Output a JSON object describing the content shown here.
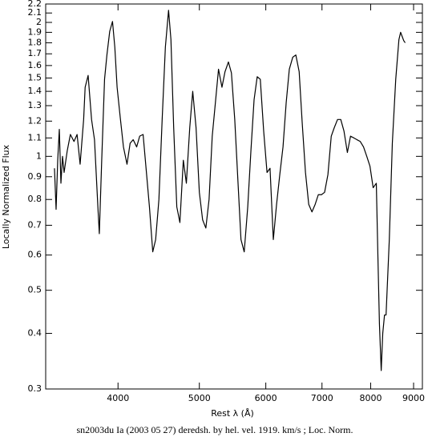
{
  "chart_data": {
    "type": "line",
    "x_label": "Rest λ (Å)",
    "y_label": "Locally Normalized Flux",
    "caption": "sn2003du Ia (2003 05 27) deredsh. by hel. vel.  1919. km/s ;  Loc. Norm.",
    "xlog": true,
    "ylog": true,
    "color": "#000000",
    "xlim": [
      3280,
      9220
    ],
    "ylim": [
      0.3,
      2.2
    ],
    "xticks": [
      4000,
      5000,
      6000,
      7000,
      8000,
      9000
    ],
    "yticks": [
      0.3,
      0.4,
      0.5,
      0.6,
      0.7,
      0.8,
      0.9,
      1,
      1.1,
      1.2,
      1.3,
      1.4,
      1.5,
      1.6,
      1.7,
      1.8,
      1.9,
      2,
      2.1,
      2.2
    ],
    "x": [
      3360,
      3375,
      3390,
      3405,
      3420,
      3435,
      3450,
      3480,
      3510,
      3545,
      3575,
      3605,
      3640,
      3655,
      3685,
      3720,
      3750,
      3785,
      3800,
      3825,
      3855,
      3880,
      3910,
      3940,
      3965,
      3990,
      4025,
      4060,
      4100,
      4135,
      4170,
      4210,
      4245,
      4285,
      4320,
      4360,
      4400,
      4435,
      4475,
      4515,
      4555,
      4595,
      4625,
      4660,
      4700,
      4740,
      4785,
      4825,
      4870,
      4910,
      4955,
      5000,
      5045,
      5090,
      5135,
      5180,
      5225,
      5270,
      5320,
      5365,
      5415,
      5460,
      5510,
      5560,
      5605,
      5655,
      5710,
      5760,
      5810,
      5860,
      5910,
      5965,
      6020,
      6070,
      6125,
      6180,
      6235,
      6290,
      6345,
      6400,
      6460,
      6515,
      6575,
      6630,
      6690,
      6750,
      6810,
      6870,
      6930,
      6990,
      7050,
      7115,
      7180,
      7240,
      7305,
      7370,
      7435,
      7505,
      7570,
      7640,
      7705,
      7775,
      7845,
      7915,
      7985,
      8055,
      8125,
      8160,
      8195,
      8235,
      8270,
      8310,
      8345,
      8420,
      8490,
      8570,
      8645,
      8685,
      8760,
      8795
    ],
    "values": [
      0.94,
      0.76,
      0.98,
      1.15,
      0.87,
      1.0,
      0.92,
      1.03,
      1.12,
      1.08,
      1.12,
      0.96,
      1.21,
      1.43,
      1.52,
      1.21,
      1.09,
      0.77,
      0.67,
      0.98,
      1.49,
      1.69,
      1.91,
      2.01,
      1.76,
      1.43,
      1.22,
      1.05,
      0.96,
      1.07,
      1.09,
      1.05,
      1.11,
      1.12,
      0.94,
      0.77,
      0.61,
      0.65,
      0.8,
      1.21,
      1.76,
      2.13,
      1.83,
      1.16,
      0.77,
      0.71,
      0.98,
      0.87,
      1.16,
      1.4,
      1.16,
      0.83,
      0.72,
      0.69,
      0.8,
      1.11,
      1.32,
      1.57,
      1.43,
      1.55,
      1.63,
      1.54,
      1.21,
      0.87,
      0.65,
      0.61,
      0.77,
      1.03,
      1.34,
      1.51,
      1.49,
      1.14,
      0.92,
      0.94,
      0.65,
      0.78,
      0.91,
      1.05,
      1.32,
      1.57,
      1.67,
      1.69,
      1.55,
      1.19,
      0.92,
      0.78,
      0.75,
      0.78,
      0.82,
      0.82,
      0.83,
      0.91,
      1.11,
      1.16,
      1.21,
      1.21,
      1.14,
      1.02,
      1.11,
      1.1,
      1.09,
      1.08,
      1.05,
      1.0,
      0.95,
      0.85,
      0.87,
      0.6,
      0.42,
      0.33,
      0.4,
      0.44,
      0.44,
      0.65,
      1.07,
      1.49,
      1.83,
      1.9,
      1.82,
      1.8
    ]
  }
}
